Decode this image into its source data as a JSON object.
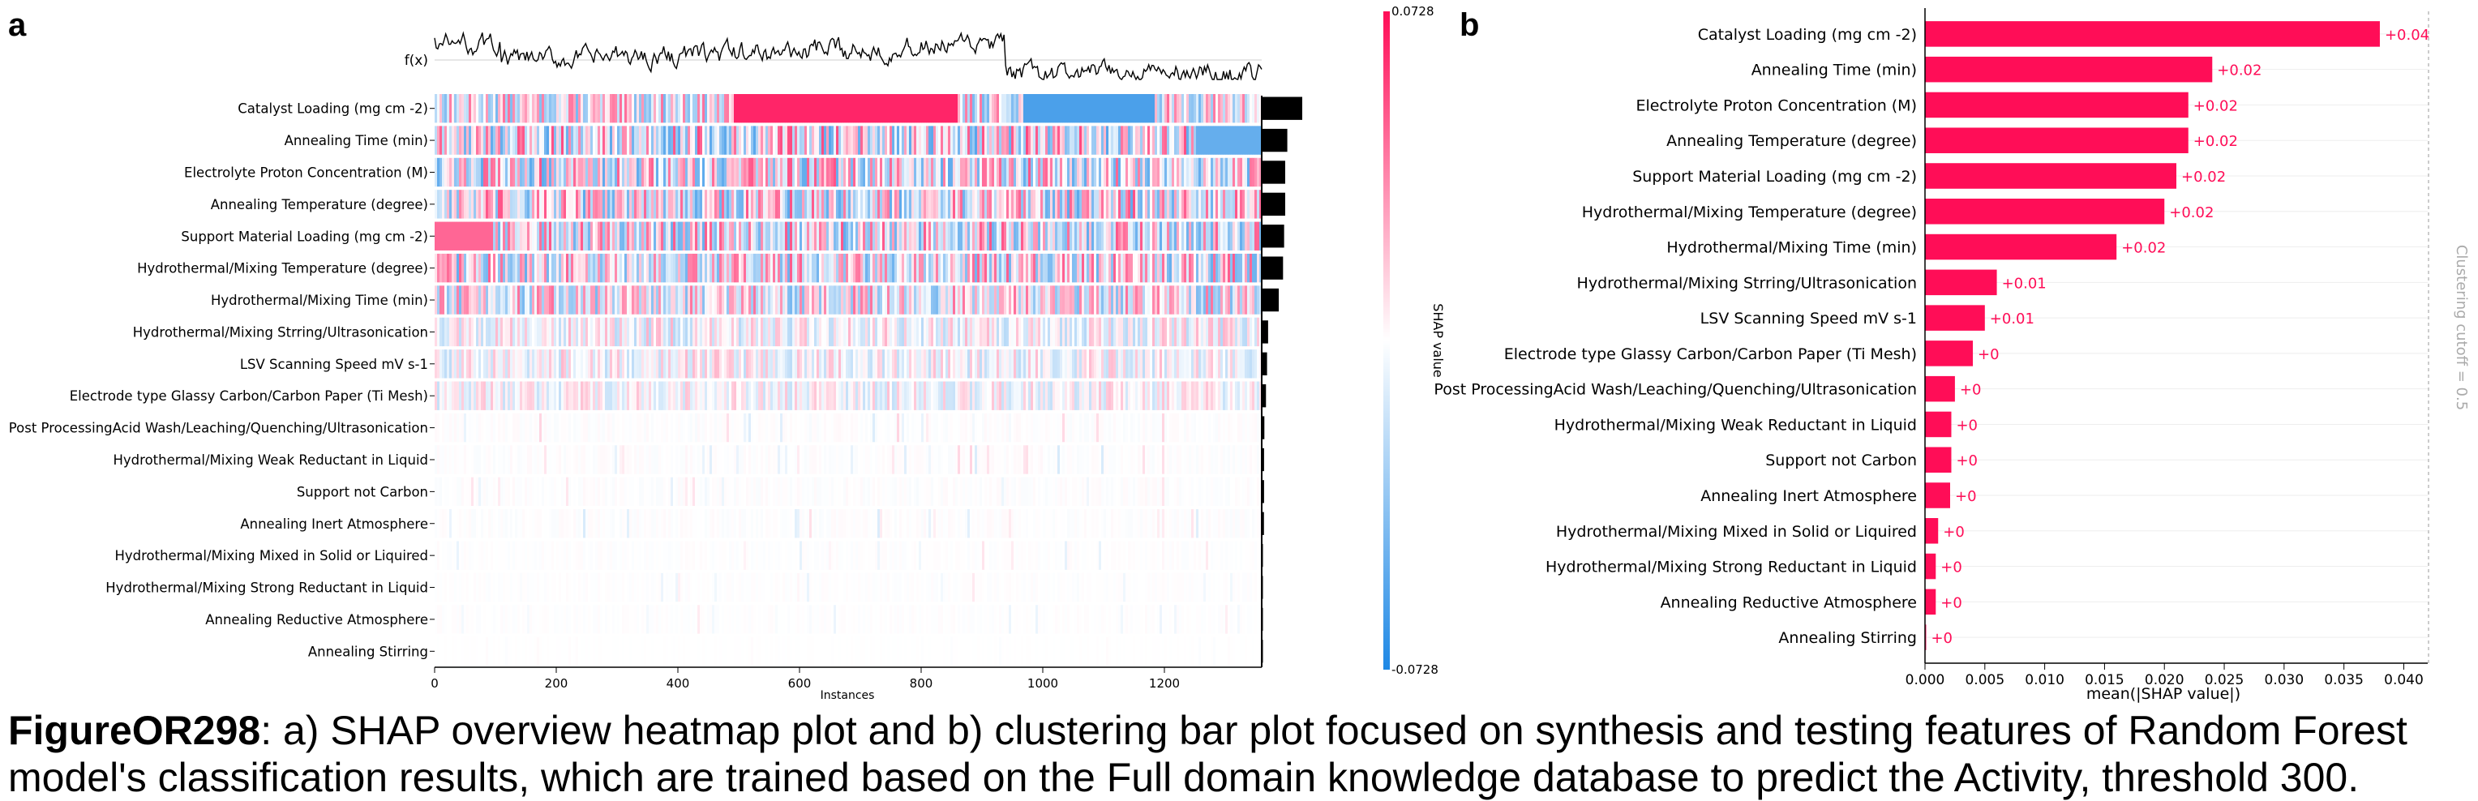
{
  "caption": {
    "figure_id": "FigureOR298",
    "text": ": a) SHAP overview heatmap plot and b) clustering bar plot focused on synthesis and testing features of Random Forest model's classification results, which are trained based on the Full domain knowledge database to predict the Activity, threshold 300."
  },
  "chart_data": [
    {
      "panel": "a",
      "type": "heatmap",
      "fx_label": "f(x)",
      "xlabel": "Instances",
      "xticks": [
        0,
        200,
        400,
        600,
        800,
        1000,
        1200
      ],
      "xlim": [
        0,
        1360
      ],
      "features": [
        "Catalyst Loading (mg cm -2)",
        "Annealing Time (min)",
        "Electrolyte Proton Concentration (M)",
        "Annealing Temperature (degree)",
        "Support Material Loading (mg cm -2)",
        "Hydrothermal/Mixing Temperature (degree)",
        "Hydrothermal/Mixing Time (min)",
        "Hydrothermal/Mixing Strring/Ultrasonication",
        "LSV Scanning Speed mV s-1",
        "Electrode type Glassy Carbon/Carbon Paper (Ti Mesh)",
        "Post ProcessingAcid Wash/Leaching/Quenching/Ultrasonication",
        "Hydrothermal/Mixing Weak Reductant in Liquid",
        "Support not Carbon",
        "Annealing Inert Atmosphere",
        "Hydrothermal/Mixing Mixed in Solid or Liquired",
        "Hydrothermal/Mixing Strong Reductant in Liquid",
        "Annealing Reductive Atmosphere",
        "Annealing Stirring"
      ],
      "importance": [
        0.038,
        0.024,
        0.022,
        0.022,
        0.021,
        0.02,
        0.016,
        0.006,
        0.005,
        0.004,
        0.0025,
        0.0022,
        0.0022,
        0.0021,
        0.0011,
        0.0009,
        0.0009,
        0.0001
      ],
      "colorbar": {
        "label": "SHAP value",
        "max_label": "0.0728",
        "min_label": "-0.0728",
        "positive_color": "#ff0d57",
        "negative_color": "#1e88e5"
      }
    },
    {
      "panel": "b",
      "type": "bar",
      "orientation": "horizontal",
      "categories": [
        "Catalyst Loading (mg cm -2)",
        "Annealing Time (min)",
        "Electrolyte Proton Concentration (M)",
        "Annealing Temperature (degree)",
        "Support Material Loading (mg cm -2)",
        "Hydrothermal/Mixing Temperature (degree)",
        "Hydrothermal/Mixing Time (min)",
        "Hydrothermal/Mixing Strring/Ultrasonication",
        "LSV Scanning Speed mV s-1",
        "Electrode type Glassy Carbon/Carbon Paper (Ti Mesh)",
        "Post ProcessingAcid Wash/Leaching/Quenching/Ultrasonication",
        "Hydrothermal/Mixing Weak Reductant in Liquid",
        "Support not Carbon",
        "Annealing Inert Atmosphere",
        "Hydrothermal/Mixing Mixed in Solid or Liquired",
        "Hydrothermal/Mixing Strong Reductant in Liquid",
        "Annealing Reductive Atmosphere",
        "Annealing Stirring"
      ],
      "values": [
        0.038,
        0.024,
        0.022,
        0.022,
        0.021,
        0.02,
        0.016,
        0.006,
        0.005,
        0.004,
        0.0025,
        0.0022,
        0.0022,
        0.0021,
        0.0011,
        0.0009,
        0.0009,
        0.0001
      ],
      "value_labels": [
        "+0.04",
        "+0.02",
        "+0.02",
        "+0.02",
        "+0.02",
        "+0.02",
        "+0.02",
        "+0.01",
        "+0.01",
        "+0",
        "+0",
        "+0",
        "+0",
        "+0",
        "+0",
        "+0",
        "+0",
        "+0"
      ],
      "xlabel": "mean(|SHAP value|)",
      "xticks": [
        "0.000",
        "0.005",
        "0.010",
        "0.015",
        "0.020",
        "0.025",
        "0.030",
        "0.035",
        "0.040"
      ],
      "xlim": [
        0,
        0.042
      ],
      "bar_color": "#ff0d57",
      "side_label": "Clustering cutoff = 0.5"
    }
  ],
  "panel_labels": {
    "a": "a",
    "b": "b"
  }
}
